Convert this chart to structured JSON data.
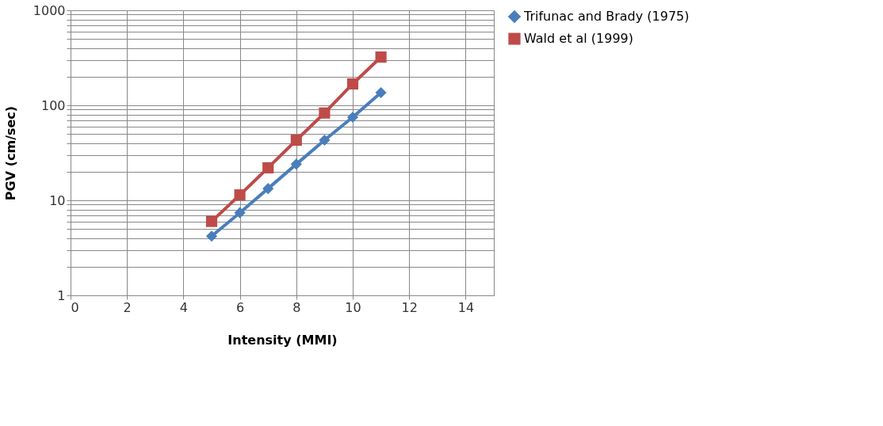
{
  "chart_data": {
    "type": "line",
    "xlabel": "Intensity (MMI)",
    "ylabel": "PGV (cm/sec)",
    "log": "y",
    "grid": true,
    "legend": "right",
    "xlim": [
      0,
      15
    ],
    "xticks": [
      0,
      2,
      4,
      6,
      8,
      10,
      12,
      14
    ],
    "ylim": [
      1,
      1000
    ],
    "yticks": [
      1,
      {
        "value": 2,
        "label": null
      },
      {
        "value": 3,
        "label": null
      },
      {
        "value": 4,
        "label": null
      },
      {
        "value": 5,
        "label": null
      },
      {
        "value": 6,
        "label": null
      },
      {
        "value": 7,
        "label": null
      },
      {
        "value": 8,
        "label": null
      },
      {
        "value": 9,
        "label": null
      },
      10,
      {
        "value": 20,
        "label": null
      },
      {
        "value": 30,
        "label": null
      },
      {
        "value": 40,
        "label": null
      },
      {
        "value": 50,
        "label": null
      },
      {
        "value": 60,
        "label": null
      },
      {
        "value": 70,
        "label": null
      },
      {
        "value": 80,
        "label": null
      },
      {
        "value": 90,
        "label": null
      },
      100,
      {
        "value": 200,
        "label": null
      },
      {
        "value": 300,
        "label": null
      },
      {
        "value": 400,
        "label": null
      },
      {
        "value": 500,
        "label": null
      },
      {
        "value": 600,
        "label": null
      },
      {
        "value": 700,
        "label": null
      },
      {
        "value": 800,
        "label": null
      },
      {
        "value": 900,
        "label": null
      },
      1000
    ],
    "x": [
      5,
      6,
      7,
      8,
      9,
      10,
      11
    ],
    "series": [
      {
        "name": "Trifunac and Brady (1975)",
        "color": "#4a7ebb",
        "marker": "diamond",
        "values": [
          4.2,
          7.4,
          13.3,
          24,
          43,
          75,
          136
        ]
      },
      {
        "name": "Wald et al (1999)",
        "color": "#be4b48",
        "marker": "square",
        "values": [
          6.0,
          11.4,
          22,
          43,
          83,
          168,
          322
        ]
      }
    ]
  }
}
